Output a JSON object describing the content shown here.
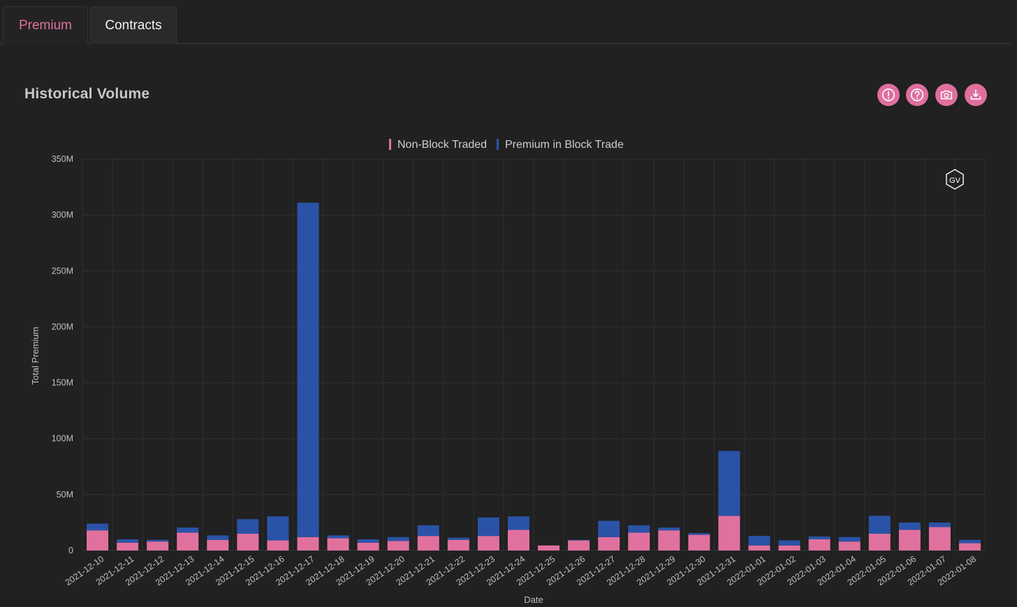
{
  "tabs": [
    {
      "label": "Premium"
    },
    {
      "label": "Contracts"
    }
  ],
  "header": {
    "title": "Historical Volume",
    "icons": [
      "alert-icon",
      "help-icon",
      "camera-icon",
      "download-icon"
    ]
  },
  "colors": {
    "accent": "#e0719f",
    "non_block": "#e0719f",
    "block": "#2a53a8",
    "background": "#212121"
  },
  "watermark": "GV",
  "chart_data": {
    "type": "bar",
    "stacked": true,
    "title": "",
    "xlabel": "Date",
    "ylabel": "Total Premium",
    "ylim": [
      0,
      350000000
    ],
    "yticks": [
      {
        "value": 0,
        "label": "0"
      },
      {
        "value": 50000000,
        "label": "50M"
      },
      {
        "value": 100000000,
        "label": "100M"
      },
      {
        "value": 150000000,
        "label": "150M"
      },
      {
        "value": 200000000,
        "label": "200M"
      },
      {
        "value": 250000000,
        "label": "250M"
      },
      {
        "value": 300000000,
        "label": "300M"
      },
      {
        "value": 350000000,
        "label": "350M"
      }
    ],
    "grid": true,
    "legend_position": "top-center",
    "categories": [
      "2021-12-10",
      "2021-12-11",
      "2021-12-12",
      "2021-12-13",
      "2021-12-14",
      "2021-12-15",
      "2021-12-16",
      "2021-12-17",
      "2021-12-18",
      "2021-12-19",
      "2021-12-20",
      "2021-12-21",
      "2021-12-22",
      "2021-12-23",
      "2021-12-24",
      "2021-12-25",
      "2021-12-26",
      "2021-12-27",
      "2021-12-28",
      "2021-12-29",
      "2021-12-30",
      "2021-12-31",
      "2022-01-01",
      "2022-01-02",
      "2022-01-03",
      "2022-01-04",
      "2022-01-05",
      "2022-01-06",
      "2022-01-07",
      "2022-01-08"
    ],
    "series": [
      {
        "name": "Non-Block Traded",
        "color": "#e0719f",
        "values": [
          18000000,
          7000000,
          8000000,
          16000000,
          9500000,
          15000000,
          9000000,
          12000000,
          11000000,
          7000000,
          8500000,
          13000000,
          9500000,
          13000000,
          18500000,
          4500000,
          9000000,
          12000000,
          16000000,
          18000000,
          14000000,
          31000000,
          4500000,
          4500000,
          10000000,
          8000000,
          15000000,
          18500000,
          21000000,
          6500000
        ]
      },
      {
        "name": "Premium in Block Trade",
        "color": "#2a53a8",
        "values": [
          6000000,
          3000000,
          1500000,
          4500000,
          4000000,
          13000000,
          21500000,
          299000000,
          2500000,
          3000000,
          3500000,
          9500000,
          2000000,
          16500000,
          12000000,
          0,
          500000,
          14500000,
          6500000,
          2500000,
          1500000,
          58000000,
          8500000,
          4500000,
          2500000,
          4000000,
          16000000,
          6500000,
          4000000,
          3000000
        ]
      }
    ]
  }
}
